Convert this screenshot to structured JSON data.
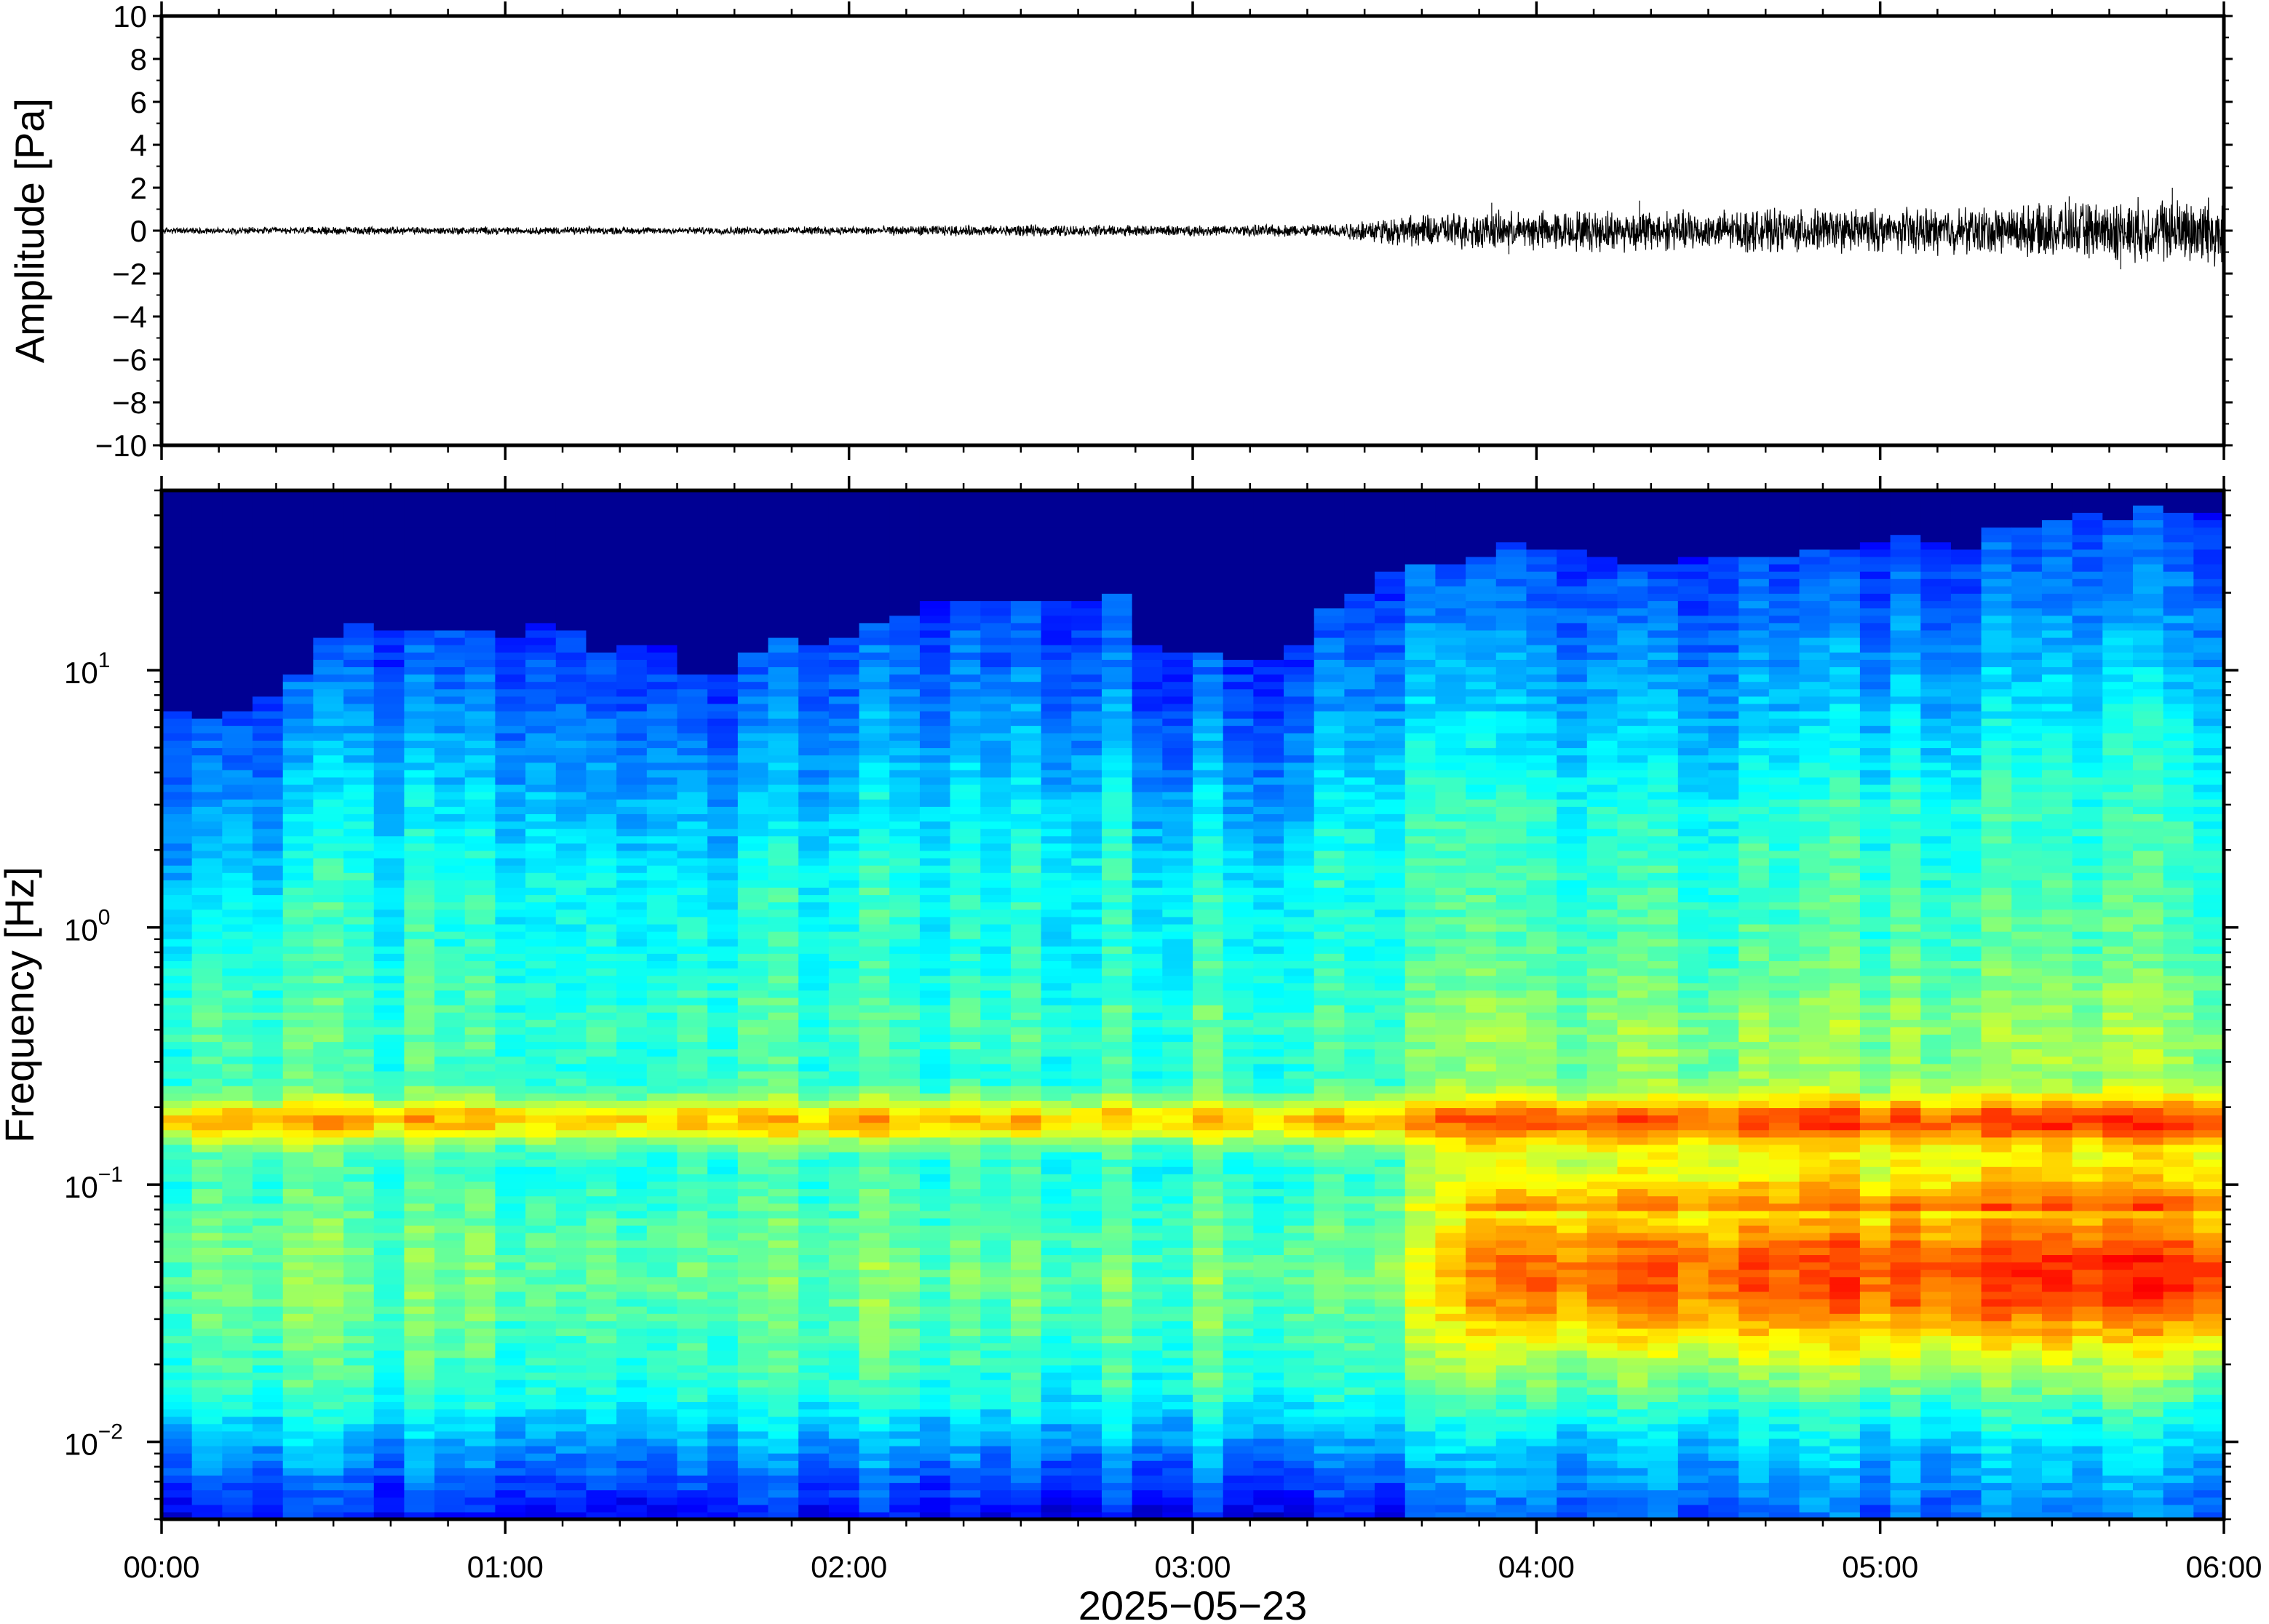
{
  "chart_data": [
    {
      "type": "line",
      "panel": "waveform",
      "ylabel": "Amplitude [Pa]",
      "ylim": [
        -10,
        10
      ],
      "yticks": [
        10,
        8,
        6,
        4,
        2,
        0,
        -2,
        -4,
        -6,
        -8,
        -10
      ],
      "ytick_labels": [
        "10",
        "8",
        "6",
        "4",
        "2",
        "0",
        "−2",
        "−4",
        "−6",
        "−8",
        "−10"
      ],
      "xlim_hours": [
        0,
        6
      ],
      "envelope": {
        "time_hours": [
          0,
          0.5,
          1,
          1.5,
          2,
          2.5,
          3,
          3.4,
          3.5,
          3.75,
          4,
          4.25,
          4.5,
          4.75,
          5,
          5.25,
          5.5,
          5.75,
          6
        ],
        "half_amplitude_pa": [
          0.12,
          0.15,
          0.15,
          0.14,
          0.17,
          0.22,
          0.2,
          0.26,
          0.45,
          0.7,
          0.75,
          0.8,
          0.78,
          0.82,
          0.85,
          0.9,
          1.0,
          1.2,
          1.4
        ]
      },
      "peaks": [
        {
          "time_hours": 3.87,
          "value_pa": 1.3
        },
        {
          "time_hours": 4.3,
          "value_pa": 1.4
        },
        {
          "time_hours": 5.55,
          "value_pa": 1.6
        },
        {
          "time_hours": 5.85,
          "value_pa": 2.0
        },
        {
          "time_hours": 3.92,
          "value_pa": -1.1
        },
        {
          "time_hours": 5.7,
          "value_pa": -1.8
        }
      ]
    },
    {
      "type": "heatmap",
      "panel": "spectrogram",
      "ylabel": "Frequency [Hz]",
      "yscale": "log",
      "ylim_hz": [
        0.005,
        50
      ],
      "yticks": [
        {
          "value": 10,
          "base": "10",
          "exp": "1"
        },
        {
          "value": 1,
          "base": "10",
          "exp": "0"
        },
        {
          "value": 0.1,
          "base": "10",
          "exp": "−1"
        },
        {
          "value": 0.01,
          "base": "10",
          "exp": "−2"
        }
      ],
      "colormap": [
        "#00007f",
        "#0000ff",
        "#007fff",
        "#00ffff",
        "#7fff7f",
        "#ffff00",
        "#ff7f00",
        "#ff0000",
        "#7f0000"
      ],
      "time_columns": 68,
      "quiet_ceiling_log10_hz": {
        "time_hours": [
          0,
          0.25,
          0.5,
          1.0,
          1.5,
          1.6,
          1.75,
          2.0,
          2.15,
          2.5,
          2.8,
          2.9,
          3.2,
          3.45,
          3.6,
          3.9,
          4.5,
          5.0,
          5.5,
          5.8,
          6.0
        ],
        "values": [
          0.85,
          0.82,
          1.18,
          1.15,
          1.08,
          0.95,
          1.08,
          1.1,
          1.22,
          1.28,
          1.25,
          1.05,
          1.05,
          1.25,
          1.42,
          1.46,
          1.42,
          1.48,
          1.55,
          1.62,
          1.66
        ]
      },
      "microseism_band_hz": [
        0.15,
        0.2
      ],
      "high_energy_onset_hours": 3.5,
      "max_energy_region": {
        "time_hours": [
          4.0,
          6.0
        ],
        "freq_hz": [
          0.03,
          0.2
        ]
      }
    }
  ],
  "x_axis": {
    "ticks_hours": [
      0,
      1,
      2,
      3,
      4,
      5,
      6
    ],
    "tick_labels": [
      "00:00",
      "01:00",
      "02:00",
      "03:00",
      "04:00",
      "05:00",
      "06:00"
    ],
    "date_label": "2025−05−23"
  },
  "colors": {
    "trace": "#000000",
    "frame": "#000000",
    "background": "#ffffff"
  }
}
